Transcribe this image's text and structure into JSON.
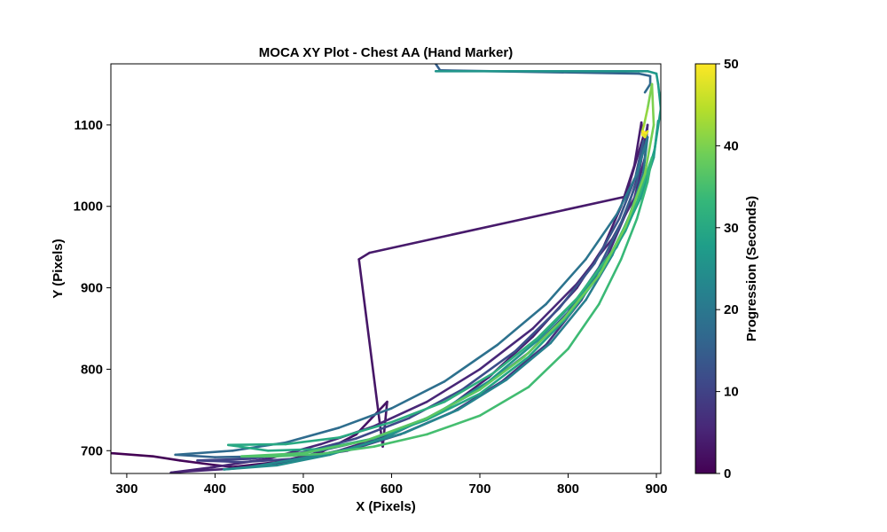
{
  "chart_data": {
    "type": "line",
    "title": "MOCA XY Plot - Chest AA (Hand Marker)",
    "xlabel": "X (Pixels)",
    "ylabel": "Y (Pixels)",
    "xlim": [
      282,
      905
    ],
    "ylim": [
      672,
      1175
    ],
    "xticks": [
      300,
      400,
      500,
      600,
      700,
      800,
      900
    ],
    "yticks": [
      700,
      800,
      900,
      1000,
      1100
    ],
    "grid": false,
    "colorbar": {
      "label": "Progression (Seconds)",
      "range": [
        0,
        50
      ],
      "ticks": [
        0,
        10,
        20,
        30,
        40,
        50
      ],
      "colormap": "viridis",
      "colors": [
        "#440154",
        "#482878",
        "#3e4989",
        "#31688e",
        "#26828e",
        "#1f9e89",
        "#35b779",
        "#6ece58",
        "#b5de2b",
        "#fde725"
      ]
    },
    "series": [
      {
        "t": [
          0,
          1.5
        ],
        "x": [
          282,
          330,
          360,
          395,
          420
        ],
        "y": [
          697,
          693,
          688,
          683,
          680
        ]
      },
      {
        "t": [
          1.5,
          3
        ],
        "x": [
          420,
          470,
          520,
          560,
          595,
          590
        ],
        "y": [
          680,
          686,
          698,
          720,
          760,
          705
        ]
      },
      {
        "t": [
          3,
          4
        ],
        "x": [
          590,
          563,
          575,
          865,
          885,
          883
        ],
        "y": [
          705,
          935,
          943,
          1012,
          1085,
          1103
        ]
      },
      {
        "t": [
          4,
          5
        ],
        "x": [
          883,
          875,
          860,
          840,
          810,
          760,
          710,
          660,
          600,
          540,
          480,
          420,
          360,
          350
        ],
        "y": [
          1103,
          1050,
          1000,
          950,
          900,
          840,
          790,
          750,
          720,
          700,
          686,
          678,
          674,
          673
        ]
      },
      {
        "t": [
          5,
          6
        ],
        "x": [
          350,
          400,
          460,
          520,
          580,
          640,
          700,
          760,
          810,
          850,
          875,
          887,
          890
        ],
        "y": [
          673,
          680,
          690,
          708,
          730,
          760,
          800,
          850,
          905,
          960,
          1010,
          1060,
          1100
        ]
      },
      {
        "t": [
          6,
          10
        ],
        "x": [
          890,
          880,
          865,
          845,
          815,
          775,
          725,
          670,
          610,
          550,
          490,
          430,
          380
        ],
        "y": [
          1100,
          1040,
          990,
          940,
          885,
          830,
          785,
          748,
          720,
          700,
          690,
          686,
          688
        ]
      },
      {
        "t": [
          10,
          14
        ],
        "x": [
          380,
          440,
          500,
          560,
          620,
          680,
          740,
          790,
          830,
          858,
          876,
          885
        ],
        "y": [
          688,
          690,
          698,
          715,
          740,
          775,
          822,
          875,
          930,
          985,
          1035,
          1080
        ]
      },
      {
        "t": [
          14,
          16
        ],
        "x": [
          885,
          878,
          860,
          835,
          800,
          755,
          700,
          640,
          580,
          520,
          460,
          400,
          355
        ],
        "y": [
          1080,
          1030,
          980,
          925,
          870,
          820,
          775,
          740,
          715,
          700,
          693,
          692,
          695
        ]
      },
      {
        "t": [
          15,
          17
        ],
        "x": [
          650,
          655,
          880,
          893,
          893,
          887
        ],
        "y": [
          1175,
          1167,
          1163,
          1160,
          1150,
          1140
        ]
      },
      {
        "t": [
          17,
          20
        ],
        "x": [
          355,
          420,
          480,
          540,
          600,
          660,
          720,
          775,
          820,
          855,
          878,
          890
        ],
        "y": [
          695,
          700,
          710,
          728,
          752,
          785,
          830,
          880,
          935,
          990,
          1040,
          1085
        ]
      },
      {
        "t": [
          20,
          24
        ],
        "x": [
          890,
          885,
          870,
          850,
          820,
          780,
          730,
          675,
          615,
          555,
          495,
          440,
          410
        ],
        "y": [
          1085,
          1040,
          990,
          940,
          885,
          832,
          787,
          750,
          722,
          703,
          690,
          680,
          677
        ]
      },
      {
        "t": [
          24,
          27
        ],
        "x": [
          410,
          470,
          530,
          590,
          650,
          710,
          765,
          815,
          855,
          882,
          897,
          902
        ],
        "y": [
          677,
          682,
          695,
          715,
          745,
          785,
          835,
          892,
          950,
          1010,
          1060,
          1105
        ]
      },
      {
        "t": [
          26,
          28
        ],
        "x": [
          650,
          890,
          900,
          902,
          903,
          905
        ],
        "y": [
          1166,
          1166,
          1163,
          1150,
          1140,
          1120
        ]
      },
      {
        "t": [
          28,
          30
        ],
        "x": [
          905,
          898,
          885,
          865,
          838,
          800,
          755,
          700,
          640,
          580,
          520,
          460,
          415
        ],
        "y": [
          1120,
          1070,
          1020,
          970,
          920,
          865,
          815,
          770,
          738,
          715,
          702,
          700,
          707
        ]
      },
      {
        "t": [
          30,
          33
        ],
        "x": [
          415,
          480,
          540,
          600,
          660,
          715,
          765,
          810,
          850,
          878,
          895
        ],
        "y": [
          707,
          708,
          716,
          735,
          760,
          795,
          838,
          887,
          945,
          1005,
          1060
        ]
      },
      {
        "t": [
          33,
          36
        ],
        "x": [
          895,
          890,
          878,
          860,
          835,
          800,
          755,
          700,
          640,
          580,
          520,
          470,
          430
        ],
        "y": [
          1060,
          1030,
          985,
          935,
          880,
          825,
          778,
          743,
          720,
          705,
          696,
          693,
          693
        ]
      },
      {
        "t": [
          36,
          40
        ],
        "x": [
          430,
          500,
          570,
          640,
          700,
          750,
          795,
          835,
          865,
          887,
          897,
          895
        ],
        "y": [
          693,
          697,
          712,
          740,
          775,
          815,
          862,
          915,
          975,
          1040,
          1100,
          1150
        ]
      },
      {
        "t": [
          40,
          47
        ],
        "x": [
          895,
          890,
          886,
          884,
          886,
          890
        ],
        "y": [
          1150,
          1120,
          1100,
          1092,
          1088,
          1092
        ]
      },
      {
        "t": [
          47,
          50
        ],
        "x": [
          890,
          887,
          884,
          885,
          888
        ],
        "y": [
          1092,
          1085,
          1088,
          1092,
          1090
        ]
      }
    ]
  }
}
